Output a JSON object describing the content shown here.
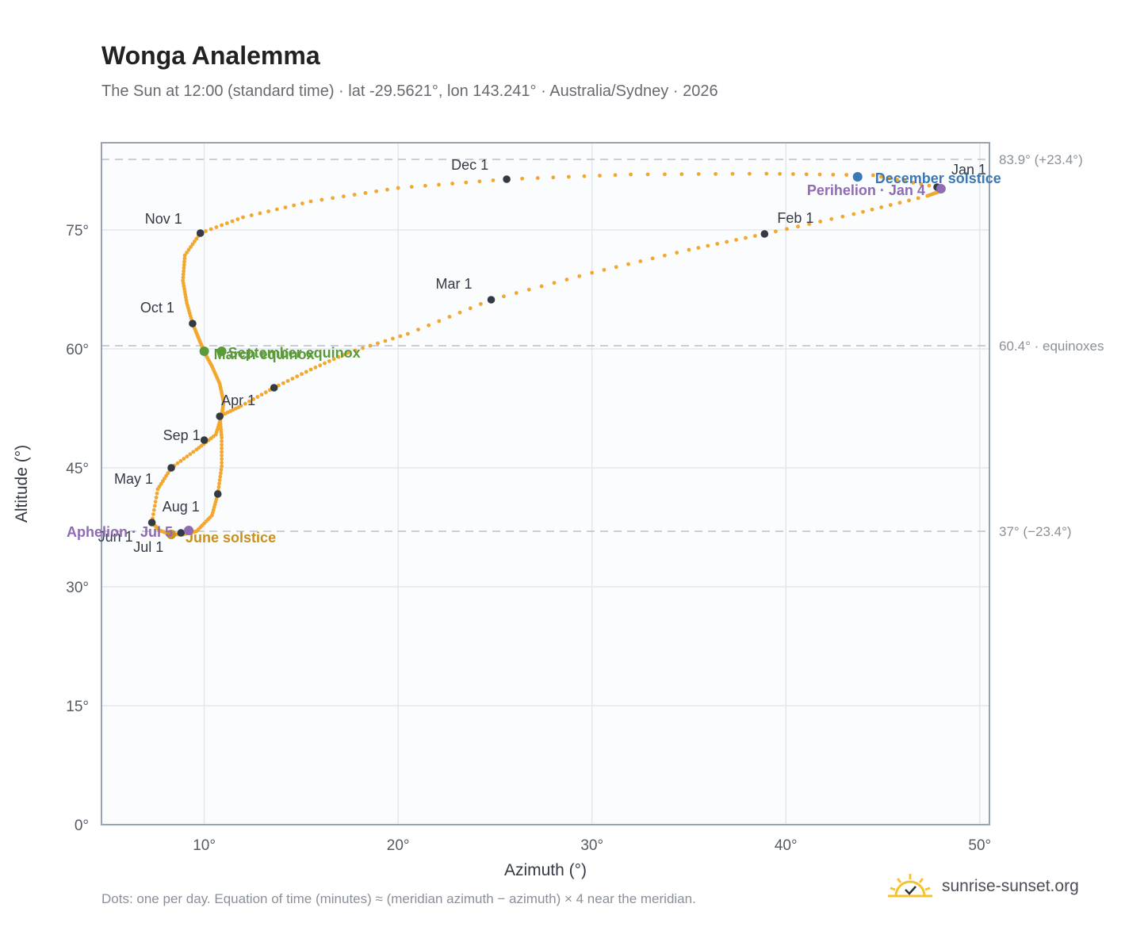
{
  "header": {
    "title": "Wonga Analemma",
    "subtitle": "The Sun at 12:00 (standard time) · lat -29.5621°, lon 143.241° · Australia/Sydney · 2026"
  },
  "footer": {
    "note": "Dots: one per day. Equation of time (minutes) ≈ (meridian azimuth − azimuth) × 4 near the meridian.",
    "brand": "sunrise-sunset.org"
  },
  "colors": {
    "curve": "#f2a72e",
    "month_marker": "#333a44",
    "equinox": "#5a9a3a",
    "june_solstice": "#c8901e",
    "december_solstice": "#3a78b8",
    "apsis": "#8e6bb5",
    "plot_bg": "#fafcfe"
  },
  "chart_data": {
    "type": "scatter",
    "title": "Wonga Analemma",
    "xlabel": "Azimuth (°)",
    "ylabel": "Altitude (°)",
    "xlim": [
      4.7,
      50.5
    ],
    "ylim": [
      0,
      86
    ],
    "x_ticks": [
      10,
      20,
      30,
      40,
      50
    ],
    "x_tick_labels": [
      "10°",
      "20°",
      "30°",
      "40°",
      "50°"
    ],
    "y_ticks": [
      0,
      15,
      30,
      45,
      60,
      75
    ],
    "y_tick_labels": [
      "0°",
      "15°",
      "30°",
      "45°",
      "60°",
      "75°"
    ],
    "grid": true,
    "reference_lines": [
      {
        "y": 83.9,
        "label": "83.9° (+23.4°)"
      },
      {
        "y": 60.4,
        "label": "60.4° · equinoxes"
      },
      {
        "y": 37.0,
        "label": "37° (−23.4°)"
      }
    ],
    "daily_path": [
      [
        47.8,
        80.4
      ],
      [
        44.5,
        81.9
      ],
      [
        39.0,
        82.1
      ],
      [
        32.0,
        82.0
      ],
      [
        25.6,
        81.4
      ],
      [
        20.0,
        80.3
      ],
      [
        15.5,
        78.6
      ],
      [
        12.0,
        76.6
      ],
      [
        9.8,
        74.6
      ],
      [
        9.0,
        71.8
      ],
      [
        8.9,
        68.6
      ],
      [
        9.1,
        65.8
      ],
      [
        9.4,
        63.2
      ],
      [
        9.7,
        61.4
      ],
      [
        10.0,
        59.6
      ],
      [
        10.4,
        57.8
      ],
      [
        10.8,
        55.6
      ],
      [
        11.0,
        53.3
      ],
      [
        10.9,
        51.6
      ],
      [
        10.6,
        49.2
      ],
      [
        9.6,
        47.3
      ],
      [
        8.3,
        45.0
      ],
      [
        7.6,
        42.3
      ],
      [
        7.3,
        38.1
      ],
      [
        7.7,
        37.1
      ],
      [
        8.3,
        36.6
      ],
      [
        8.9,
        36.6
      ],
      [
        9.6,
        37.0
      ],
      [
        10.4,
        39.0
      ],
      [
        10.7,
        41.7
      ],
      [
        10.9,
        45.2
      ],
      [
        10.9,
        48.8
      ],
      [
        10.8,
        51.5
      ],
      [
        11.9,
        52.8
      ],
      [
        13.6,
        55.1
      ],
      [
        15.5,
        57.4
      ],
      [
        17.4,
        59.5
      ],
      [
        20.5,
        61.9
      ],
      [
        24.8,
        66.2
      ],
      [
        30.0,
        69.6
      ],
      [
        35.0,
        72.5
      ],
      [
        38.9,
        74.5
      ],
      [
        43.5,
        77.0
      ],
      [
        47.3,
        79.3
      ],
      [
        48.1,
        80.0
      ],
      [
        47.8,
        80.4
      ]
    ],
    "month_markers": [
      {
        "label": "Jan 1",
        "x": 47.8,
        "y": 80.4,
        "label_dx": 18,
        "label_dy": -16
      },
      {
        "label": "Feb 1",
        "x": 38.9,
        "y": 74.5,
        "label_dx": 16,
        "label_dy": -14
      },
      {
        "label": "Mar 1",
        "x": 24.8,
        "y": 66.2,
        "label_dx": -70,
        "label_dy": -14
      },
      {
        "label": "Apr 1",
        "x": 10.8,
        "y": 51.5,
        "label_dx": 2,
        "label_dy": -14
      },
      {
        "label": "",
        "x": 13.6,
        "y": 55.1,
        "label_dx": 0,
        "label_dy": 0
      },
      {
        "label": "May 1",
        "x": 8.3,
        "y": 45.0,
        "label_dx": -72,
        "label_dy": 20
      },
      {
        "label": "Jun 1",
        "x": 7.3,
        "y": 38.1,
        "label_dx": -68,
        "label_dy": 24
      },
      {
        "label": "Jul 1",
        "x": 8.8,
        "y": 36.8,
        "label_dx": -60,
        "label_dy": 24
      },
      {
        "label": "Aug 1",
        "x": 10.7,
        "y": 41.7,
        "label_dx": -70,
        "label_dy": 22
      },
      {
        "label": "Sep 1",
        "x": 10.0,
        "y": 48.5,
        "label_dx": -52,
        "label_dy": 0
      },
      {
        "label": "Oct 1",
        "x": 9.4,
        "y": 63.2,
        "label_dx": -66,
        "label_dy": -14
      },
      {
        "label": "Nov 1",
        "x": 9.8,
        "y": 74.6,
        "label_dx": -70,
        "label_dy": -12
      },
      {
        "label": "Dec 1",
        "x": 25.6,
        "y": 81.4,
        "label_dx": -70,
        "label_dy": -12
      }
    ],
    "events": [
      {
        "label": "December solstice",
        "x": 43.7,
        "y": 81.7,
        "color": "#3a78b8",
        "label_dx": 22,
        "label_dy": 8,
        "anchor": "start"
      },
      {
        "label": "Perihelion · Jan 4",
        "x": 48.0,
        "y": 80.2,
        "color": "#8e6bb5",
        "label_dx": -20,
        "label_dy": 8,
        "anchor": "end"
      },
      {
        "label": "March equinox",
        "x": 10.0,
        "y": 59.7,
        "color": "#5a9a3a",
        "label_dx": 12,
        "label_dy": 10,
        "anchor": "start"
      },
      {
        "label": "September equinox",
        "x": 10.9,
        "y": 59.7,
        "color": "#5a9a3a",
        "label_dx": 8,
        "label_dy": 8,
        "anchor": "start"
      },
      {
        "label": "June solstice",
        "x": 8.3,
        "y": 36.6,
        "color": "#c8901e",
        "label_dx": 18,
        "label_dy": 10,
        "anchor": "start"
      },
      {
        "label": "Aphelion · Jul 5",
        "x": 9.2,
        "y": 37.1,
        "color": "#8e6bb5",
        "label_dx": -20,
        "label_dy": 8,
        "anchor": "end"
      }
    ]
  }
}
